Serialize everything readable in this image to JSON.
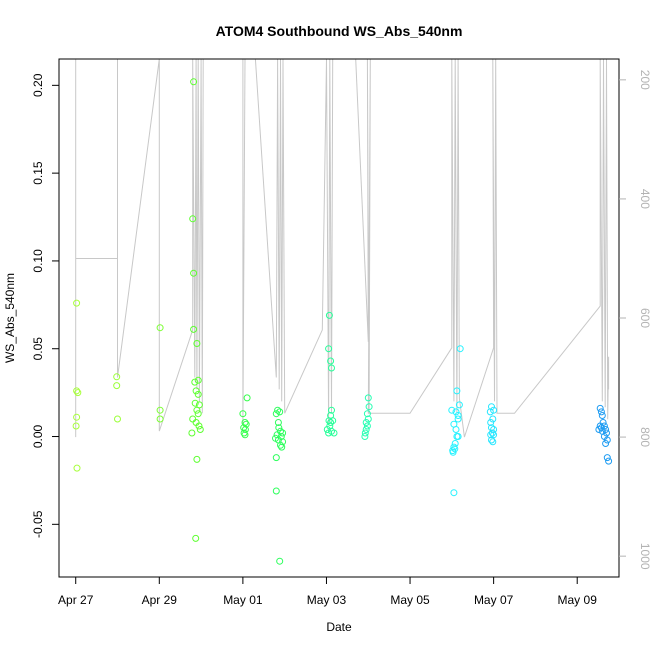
{
  "chart_data": {
    "type": "scatter",
    "title": "ATOM4 Southbound WS_Abs_540nm",
    "xlabel": "Date",
    "ylabel": "WS_Abs_540nm",
    "x_unit": "days since Apr 27 00:00",
    "xlim": [
      -0.4,
      13.0
    ],
    "ylim": [
      -0.08,
      0.215
    ],
    "x_ticks": [
      {
        "value": 0,
        "label": "Apr 27"
      },
      {
        "value": 2,
        "label": "Apr 29"
      },
      {
        "value": 4,
        "label": "May 01"
      },
      {
        "value": 6,
        "label": "May 03"
      },
      {
        "value": 8,
        "label": "May 05"
      },
      {
        "value": 10,
        "label": "May 07"
      },
      {
        "value": 12,
        "label": "May 09"
      }
    ],
    "y_ticks": [
      {
        "value": -0.05,
        "label": "-0.05"
      },
      {
        "value": 0.0,
        "label": "0.00"
      },
      {
        "value": 0.05,
        "label": "0.05"
      },
      {
        "value": 0.1,
        "label": "0.10"
      },
      {
        "value": 0.15,
        "label": "0.15"
      },
      {
        "value": 0.2,
        "label": "0.20"
      }
    ],
    "secondary_axis": {
      "side": "right",
      "lim": [
        1035,
        165
      ],
      "color": "#b3b3b3",
      "ticks": [
        {
          "value": 200,
          "label": "200"
        },
        {
          "value": 400,
          "label": "400"
        },
        {
          "value": 600,
          "label": "600"
        },
        {
          "value": 800,
          "label": "800"
        },
        {
          "value": 1000,
          "label": "1000"
        }
      ]
    },
    "grid": false,
    "marker": "open-circle",
    "color_scale": "time-gradient (yellow-green to blue)",
    "series": [
      {
        "name": "WS_Abs_540nm",
        "points": [
          {
            "x": 0.02,
            "y": 0.076,
            "color": "#a8ff3c"
          },
          {
            "x": 0.02,
            "y": 0.026,
            "color": "#a8ff3c"
          },
          {
            "x": 0.05,
            "y": 0.025,
            "color": "#a8ff3c"
          },
          {
            "x": 0.02,
            "y": 0.011,
            "color": "#a8ff3c"
          },
          {
            "x": 0.01,
            "y": 0.006,
            "color": "#a8ff3c"
          },
          {
            "x": 0.03,
            "y": -0.018,
            "color": "#a8ff3c"
          },
          {
            "x": 0.98,
            "y": 0.034,
            "color": "#9cff3a"
          },
          {
            "x": 0.98,
            "y": 0.029,
            "color": "#9cff3a"
          },
          {
            "x": 1.0,
            "y": 0.01,
            "color": "#9cff3a"
          },
          {
            "x": 2.02,
            "y": 0.062,
            "color": "#7cff33"
          },
          {
            "x": 2.02,
            "y": 0.015,
            "color": "#7cff33"
          },
          {
            "x": 2.02,
            "y": 0.01,
            "color": "#7cff33"
          },
          {
            "x": 2.82,
            "y": 0.202,
            "color": "#5dff30"
          },
          {
            "x": 2.8,
            "y": 0.124,
            "color": "#5dff30"
          },
          {
            "x": 2.82,
            "y": 0.093,
            "color": "#5dff30"
          },
          {
            "x": 2.82,
            "y": 0.061,
            "color": "#5dff30"
          },
          {
            "x": 2.9,
            "y": 0.053,
            "color": "#5dff30"
          },
          {
            "x": 2.85,
            "y": 0.031,
            "color": "#5dff30"
          },
          {
            "x": 2.93,
            "y": 0.032,
            "color": "#5dff30"
          },
          {
            "x": 2.88,
            "y": 0.026,
            "color": "#5dff30"
          },
          {
            "x": 2.93,
            "y": 0.024,
            "color": "#5dff30"
          },
          {
            "x": 2.86,
            "y": 0.019,
            "color": "#5dff30"
          },
          {
            "x": 2.96,
            "y": 0.018,
            "color": "#5dff30"
          },
          {
            "x": 2.9,
            "y": 0.015,
            "color": "#5dff30"
          },
          {
            "x": 2.93,
            "y": 0.013,
            "color": "#5dff30"
          },
          {
            "x": 2.8,
            "y": 0.01,
            "color": "#5dff30"
          },
          {
            "x": 2.88,
            "y": 0.008,
            "color": "#5dff30"
          },
          {
            "x": 2.95,
            "y": 0.006,
            "color": "#5dff30"
          },
          {
            "x": 2.98,
            "y": 0.004,
            "color": "#5dff30"
          },
          {
            "x": 2.78,
            "y": 0.002,
            "color": "#5dff30"
          },
          {
            "x": 2.9,
            "y": -0.013,
            "color": "#5dff30"
          },
          {
            "x": 2.87,
            "y": -0.058,
            "color": "#5dff30"
          },
          {
            "x": 4.1,
            "y": 0.022,
            "color": "#33ff4a"
          },
          {
            "x": 4.0,
            "y": 0.013,
            "color": "#33ff4a"
          },
          {
            "x": 4.05,
            "y": 0.008,
            "color": "#33ff4a"
          },
          {
            "x": 4.08,
            "y": 0.007,
            "color": "#33ff4a"
          },
          {
            "x": 4.02,
            "y": 0.005,
            "color": "#33ff4a"
          },
          {
            "x": 4.06,
            "y": 0.004,
            "color": "#33ff4a"
          },
          {
            "x": 4.03,
            "y": 0.002,
            "color": "#33ff4a"
          },
          {
            "x": 4.05,
            "y": 0.001,
            "color": "#33ff4a"
          },
          {
            "x": 4.83,
            "y": 0.015,
            "color": "#2cff5c"
          },
          {
            "x": 4.88,
            "y": 0.014,
            "color": "#2cff5c"
          },
          {
            "x": 4.8,
            "y": 0.013,
            "color": "#2cff5c"
          },
          {
            "x": 4.85,
            "y": 0.008,
            "color": "#2cff5c"
          },
          {
            "x": 4.86,
            "y": 0.005,
            "color": "#2cff5c"
          },
          {
            "x": 4.9,
            "y": 0.003,
            "color": "#2cff5c"
          },
          {
            "x": 4.95,
            "y": 0.002,
            "color": "#2cff5c"
          },
          {
            "x": 4.82,
            "y": 0.001,
            "color": "#2cff5c"
          },
          {
            "x": 4.92,
            "y": 0.0,
            "color": "#2cff5c"
          },
          {
            "x": 4.78,
            "y": -0.001,
            "color": "#2cff5c"
          },
          {
            "x": 4.85,
            "y": -0.002,
            "color": "#2cff5c"
          },
          {
            "x": 4.95,
            "y": -0.003,
            "color": "#2cff5c"
          },
          {
            "x": 4.9,
            "y": -0.005,
            "color": "#2cff5c"
          },
          {
            "x": 4.93,
            "y": -0.006,
            "color": "#2cff5c"
          },
          {
            "x": 4.8,
            "y": -0.012,
            "color": "#2cff5c"
          },
          {
            "x": 4.8,
            "y": -0.031,
            "color": "#2cff5c"
          },
          {
            "x": 4.88,
            "y": -0.071,
            "color": "#2cff5c"
          },
          {
            "x": 6.07,
            "y": 0.069,
            "color": "#26ff99"
          },
          {
            "x": 6.05,
            "y": 0.05,
            "color": "#26ff99"
          },
          {
            "x": 6.1,
            "y": 0.043,
            "color": "#26ff99"
          },
          {
            "x": 6.12,
            "y": 0.039,
            "color": "#26ff99"
          },
          {
            "x": 6.12,
            "y": 0.015,
            "color": "#26ff99"
          },
          {
            "x": 6.1,
            "y": 0.012,
            "color": "#26ff99"
          },
          {
            "x": 6.06,
            "y": 0.009,
            "color": "#26ff99"
          },
          {
            "x": 6.1,
            "y": 0.008,
            "color": "#26ff99"
          },
          {
            "x": 6.15,
            "y": 0.009,
            "color": "#26ff99"
          },
          {
            "x": 6.08,
            "y": 0.006,
            "color": "#26ff99"
          },
          {
            "x": 6.02,
            "y": 0.004,
            "color": "#26ff99"
          },
          {
            "x": 6.12,
            "y": 0.003,
            "color": "#26ff99"
          },
          {
            "x": 6.05,
            "y": 0.002,
            "color": "#26ff99"
          },
          {
            "x": 6.18,
            "y": 0.002,
            "color": "#26ff99"
          },
          {
            "x": 7.0,
            "y": 0.022,
            "color": "#26ffb3"
          },
          {
            "x": 7.02,
            "y": 0.017,
            "color": "#26ffb3"
          },
          {
            "x": 6.98,
            "y": 0.013,
            "color": "#26ffb3"
          },
          {
            "x": 7.0,
            "y": 0.01,
            "color": "#26ffb3"
          },
          {
            "x": 6.95,
            "y": 0.008,
            "color": "#26ffb3"
          },
          {
            "x": 6.98,
            "y": 0.006,
            "color": "#26ffb3"
          },
          {
            "x": 6.95,
            "y": 0.004,
            "color": "#26ffb3"
          },
          {
            "x": 6.93,
            "y": 0.002,
            "color": "#26ffb3"
          },
          {
            "x": 6.92,
            "y": 0.0,
            "color": "#26ffb3"
          },
          {
            "x": 9.2,
            "y": 0.05,
            "color": "#26f2ff"
          },
          {
            "x": 9.12,
            "y": 0.026,
            "color": "#26f2ff"
          },
          {
            "x": 9.18,
            "y": 0.018,
            "color": "#26f2ff"
          },
          {
            "x": 9.0,
            "y": 0.015,
            "color": "#26f2ff"
          },
          {
            "x": 9.1,
            "y": 0.014,
            "color": "#26f2ff"
          },
          {
            "x": 9.15,
            "y": 0.012,
            "color": "#26f2ff"
          },
          {
            "x": 9.15,
            "y": 0.01,
            "color": "#26f2ff"
          },
          {
            "x": 9.05,
            "y": 0.007,
            "color": "#26f2ff"
          },
          {
            "x": 9.1,
            "y": 0.004,
            "color": "#26f2ff"
          },
          {
            "x": 9.15,
            "y": 0.0,
            "color": "#26f2ff"
          },
          {
            "x": 9.12,
            "y": 0.0,
            "color": "#26f2ff"
          },
          {
            "x": 9.08,
            "y": -0.004,
            "color": "#26f2ff"
          },
          {
            "x": 9.05,
            "y": -0.006,
            "color": "#26f2ff"
          },
          {
            "x": 9.02,
            "y": -0.008,
            "color": "#26f2ff"
          },
          {
            "x": 9.07,
            "y": -0.007,
            "color": "#26f2ff"
          },
          {
            "x": 9.03,
            "y": -0.009,
            "color": "#26f2ff"
          },
          {
            "x": 9.05,
            "y": -0.032,
            "color": "#26f2ff"
          },
          {
            "x": 9.95,
            "y": 0.017,
            "color": "#26e6ff"
          },
          {
            "x": 10.0,
            "y": 0.015,
            "color": "#26e6ff"
          },
          {
            "x": 9.92,
            "y": 0.014,
            "color": "#26e6ff"
          },
          {
            "x": 9.98,
            "y": 0.01,
            "color": "#26e6ff"
          },
          {
            "x": 9.93,
            "y": 0.008,
            "color": "#26e6ff"
          },
          {
            "x": 9.95,
            "y": 0.005,
            "color": "#26e6ff"
          },
          {
            "x": 10.0,
            "y": 0.004,
            "color": "#26e6ff"
          },
          {
            "x": 9.97,
            "y": 0.002,
            "color": "#26e6ff"
          },
          {
            "x": 9.93,
            "y": 0.001,
            "color": "#26e6ff"
          },
          {
            "x": 10.0,
            "y": 0.001,
            "color": "#26e6ff"
          },
          {
            "x": 9.95,
            "y": -0.002,
            "color": "#26e6ff"
          },
          {
            "x": 9.98,
            "y": -0.003,
            "color": "#26e6ff"
          },
          {
            "x": 12.55,
            "y": 0.016,
            "color": "#1f9cf2"
          },
          {
            "x": 12.58,
            "y": 0.014,
            "color": "#1f9cf2"
          },
          {
            "x": 12.6,
            "y": 0.012,
            "color": "#1f9cf2"
          },
          {
            "x": 12.62,
            "y": 0.008,
            "color": "#1f9cf2"
          },
          {
            "x": 12.55,
            "y": 0.006,
            "color": "#1f9cf2"
          },
          {
            "x": 12.58,
            "y": 0.005,
            "color": "#1f9cf2"
          },
          {
            "x": 12.65,
            "y": 0.006,
            "color": "#1f9cf2"
          },
          {
            "x": 12.52,
            "y": 0.004,
            "color": "#1f9cf2"
          },
          {
            "x": 12.6,
            "y": 0.003,
            "color": "#1f9cf2"
          },
          {
            "x": 12.68,
            "y": 0.004,
            "color": "#1f9cf2"
          },
          {
            "x": 12.7,
            "y": 0.002,
            "color": "#1f9cf2"
          },
          {
            "x": 12.65,
            "y": 0.0,
            "color": "#1f9cf2"
          },
          {
            "x": 12.72,
            "y": -0.002,
            "color": "#1f9cf2"
          },
          {
            "x": 12.68,
            "y": -0.004,
            "color": "#1f9cf2"
          },
          {
            "x": 12.72,
            "y": -0.012,
            "color": "#1f9cf2"
          },
          {
            "x": 12.75,
            "y": -0.014,
            "color": "#1f9cf2"
          }
        ]
      }
    ],
    "secondary_series": {
      "name": "altitude trace (grey line, right axis)",
      "color": "#c8c8c8",
      "points": [
        [
          -0.4,
          165
        ],
        [
          0.0,
          165
        ],
        [
          0.0,
          800
        ],
        [
          0.0,
          165
        ],
        [
          0.0,
          500
        ],
        [
          1.0,
          500
        ],
        [
          1.0,
          165
        ],
        [
          1.0,
          700
        ],
        [
          2.0,
          165
        ],
        [
          2.0,
          790
        ],
        [
          2.8,
          620
        ],
        [
          2.8,
          165
        ],
        [
          2.85,
          700
        ],
        [
          2.88,
          165
        ],
        [
          2.9,
          720
        ],
        [
          2.93,
          165
        ],
        [
          2.96,
          740
        ],
        [
          3.0,
          165
        ],
        [
          3.03,
          760
        ],
        [
          3.05,
          165
        ],
        [
          4.0,
          165
        ],
        [
          4.0,
          780
        ],
        [
          4.05,
          165
        ],
        [
          4.3,
          165
        ],
        [
          4.8,
          700
        ],
        [
          4.83,
          165
        ],
        [
          4.87,
          720
        ],
        [
          4.9,
          165
        ],
        [
          4.93,
          740
        ],
        [
          4.96,
          165
        ],
        [
          5.0,
          760
        ],
        [
          5.9,
          620
        ],
        [
          6.0,
          165
        ],
        [
          6.05,
          780
        ],
        [
          6.08,
          165
        ],
        [
          6.12,
          760
        ],
        [
          6.15,
          165
        ],
        [
          6.7,
          165
        ],
        [
          7.0,
          640
        ],
        [
          6.98,
          165
        ],
        [
          7.02,
          760
        ],
        [
          7.05,
          165
        ],
        [
          7.0,
          760
        ],
        [
          8.0,
          760
        ],
        [
          9.0,
          650
        ],
        [
          9.0,
          165
        ],
        [
          9.05,
          740
        ],
        [
          9.08,
          165
        ],
        [
          9.12,
          760
        ],
        [
          9.15,
          165
        ],
        [
          9.18,
          735
        ],
        [
          9.3,
          800
        ],
        [
          10.0,
          650
        ],
        [
          9.98,
          165
        ],
        [
          10.02,
          740
        ],
        [
          10.05,
          165
        ],
        [
          10.08,
          760
        ],
        [
          10.5,
          760
        ],
        [
          12.55,
          580
        ],
        [
          12.55,
          165
        ],
        [
          12.6,
          740
        ],
        [
          12.63,
          165
        ],
        [
          12.67,
          750
        ],
        [
          12.7,
          165
        ],
        [
          12.73,
          770
        ],
        [
          12.75,
          665
        ],
        [
          12.75,
          720
        ]
      ]
    }
  }
}
